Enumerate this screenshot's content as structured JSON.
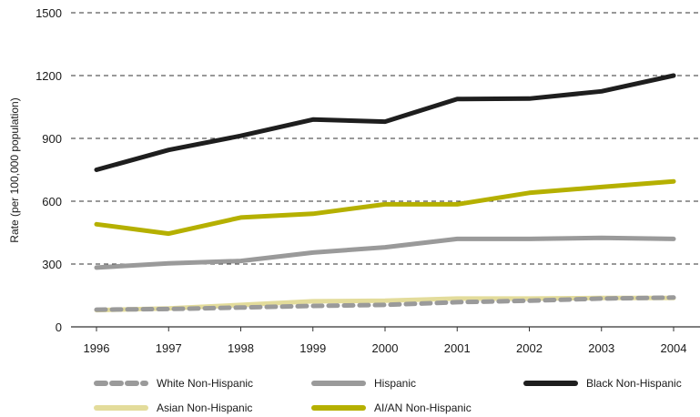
{
  "chart_data": {
    "type": "line",
    "title": "",
    "xlabel": "",
    "ylabel": "Rate (per 100,000 population)",
    "x": [
      "1996",
      "1997",
      "1998",
      "1999",
      "2000",
      "2001",
      "2002",
      "2003",
      "2004"
    ],
    "ylim": [
      0,
      1500
    ],
    "yticks": [
      "0",
      "300",
      "600",
      "900",
      "1200",
      "1500"
    ],
    "grid": true,
    "legend_position": "bottom",
    "series": [
      {
        "name": "White Non-Hispanic",
        "color": "#9a9a9a",
        "style": "dashed",
        "values": [
          82,
          85,
          92,
          100,
          105,
          118,
          125,
          135,
          140
        ]
      },
      {
        "name": "Hispanic",
        "color": "#9a9a9a",
        "style": "solid",
        "values": [
          283,
          303,
          315,
          355,
          380,
          420,
          420,
          425,
          420
        ]
      },
      {
        "name": "Black Non-Hispanic",
        "color": "#1e1e1e",
        "style": "solid",
        "values": [
          750,
          845,
          912,
          990,
          980,
          1088,
          1090,
          1125,
          1200
        ]
      },
      {
        "name": "Asian Non-Hispanic",
        "color": "#e3dc9b",
        "style": "solid",
        "values": [
          80,
          88,
          105,
          122,
          125,
          135,
          135,
          138,
          138
        ]
      },
      {
        "name": "AI/AN Non-Hispanic",
        "color": "#b5b000",
        "style": "solid",
        "values": [
          490,
          445,
          522,
          540,
          585,
          585,
          640,
          668,
          695
        ]
      }
    ]
  }
}
